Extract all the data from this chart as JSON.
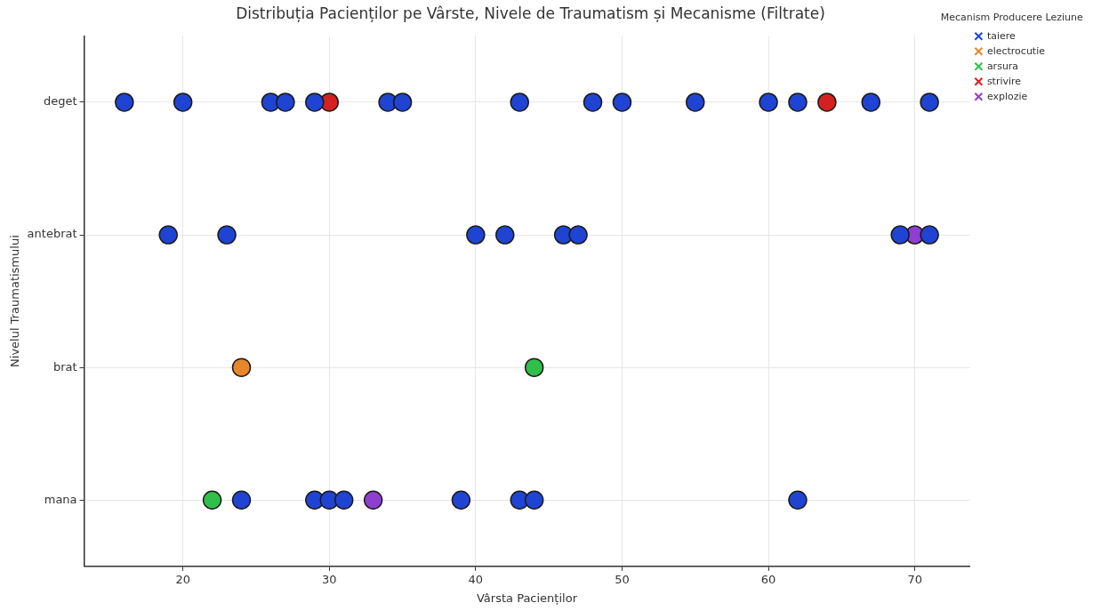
{
  "chart_data": {
    "type": "scatter",
    "orientation": "horizontal",
    "title": "Distribuția Pacienților pe Vârste, Nivele de Traumatism și Mecanisme (Filtrate)",
    "xlabel": "Vârsta Pacienților",
    "ylabel": "Nivelul Traumatismului",
    "legend_title": "Mecanism Producere Leziune",
    "legend": "top right",
    "grid": true,
    "marker": "circle",
    "categories": [
      "deget",
      "antebrat",
      "brat",
      "mana"
    ],
    "xlim": [
      13.25,
      73.75
    ],
    "xticks": [
      20,
      30,
      40,
      50,
      60,
      70
    ],
    "series": [
      {
        "name": "taiere",
        "color": "#1f44d4",
        "values": [
          16,
          20,
          26,
          27,
          29,
          34,
          35,
          43,
          48,
          50,
          55,
          60,
          62,
          67,
          71,
          19,
          23,
          40,
          42,
          46,
          47,
          69,
          71,
          24,
          29,
          30,
          31,
          39,
          43,
          44,
          62
        ],
        "x": [
          "deget",
          "deget",
          "deget",
          "deget",
          "deget",
          "deget",
          "deget",
          "deget",
          "deget",
          "deget",
          "deget",
          "deget",
          "deget",
          "deget",
          "deget",
          "antebrat",
          "antebrat",
          "antebrat",
          "antebrat",
          "antebrat",
          "antebrat",
          "antebrat",
          "antebrat",
          "mana",
          "mana",
          "mana",
          "mana",
          "mana",
          "mana",
          "mana",
          "mana"
        ]
      },
      {
        "name": "electrocutie",
        "color": "#e8862a",
        "values": [
          24
        ],
        "x": [
          "brat"
        ]
      },
      {
        "name": "arsura",
        "color": "#2fbf4a",
        "values": [
          44,
          22
        ],
        "x": [
          "brat",
          "mana"
        ]
      },
      {
        "name": "strivire",
        "color": "#d62020",
        "values": [
          30,
          64
        ],
        "x": [
          "deget",
          "deget"
        ]
      },
      {
        "name": "explozie",
        "color": "#8e3fd0",
        "values": [
          70,
          33
        ],
        "x": [
          "antebrat",
          "mana"
        ]
      }
    ]
  }
}
